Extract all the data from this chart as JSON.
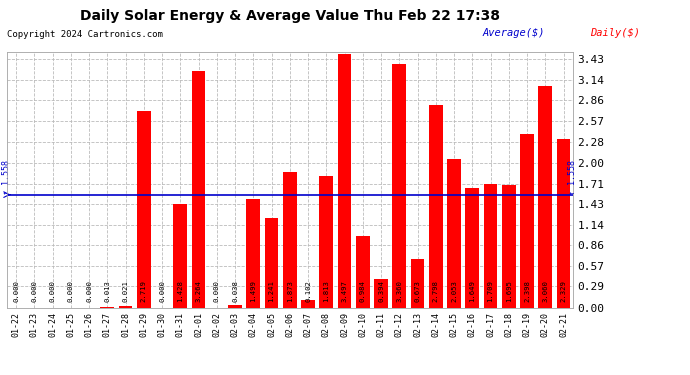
{
  "title": "Daily Solar Energy & Average Value Thu Feb 22 17:38",
  "copyright": "Copyright 2024 Cartronics.com",
  "average_label": "Average($)",
  "daily_label": "Daily($)",
  "average_value": 1.558,
  "categories": [
    "01-22",
    "01-23",
    "01-24",
    "01-25",
    "01-26",
    "01-27",
    "01-28",
    "01-29",
    "01-30",
    "01-31",
    "02-01",
    "02-02",
    "02-03",
    "02-04",
    "02-05",
    "02-06",
    "02-07",
    "02-08",
    "02-09",
    "02-10",
    "02-11",
    "02-12",
    "02-13",
    "02-14",
    "02-15",
    "02-16",
    "02-17",
    "02-18",
    "02-19",
    "02-20",
    "02-21"
  ],
  "values": [
    0.0,
    0.0,
    0.0,
    0.0,
    0.0,
    0.013,
    0.021,
    2.719,
    0.0,
    1.428,
    3.264,
    0.0,
    0.038,
    1.499,
    1.241,
    1.873,
    0.102,
    1.813,
    3.497,
    0.984,
    0.394,
    3.36,
    0.673,
    2.798,
    2.053,
    1.649,
    1.709,
    1.695,
    2.398,
    3.06,
    2.329
  ],
  "bar_color": "#ff0000",
  "average_line_color": "#0000cc",
  "title_color": "#000000",
  "copyright_color": "#000000",
  "yticks": [
    0.0,
    0.29,
    0.57,
    0.86,
    1.14,
    1.43,
    1.71,
    2.0,
    2.28,
    2.57,
    2.86,
    3.14,
    3.43
  ],
  "background_color": "#ffffff",
  "grid_color": "#bbbbbb",
  "ymax": 3.52
}
